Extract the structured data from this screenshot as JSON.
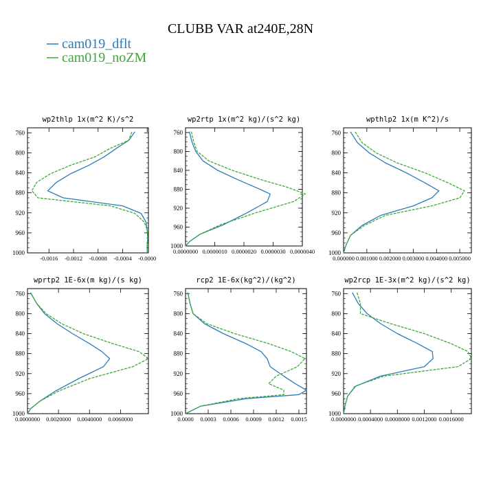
{
  "figure": {
    "title": "CLUBB VAR at240E,28N",
    "legend": [
      {
        "label": "cam019_dflt",
        "color": "#2b7bb9",
        "dash": "solid"
      },
      {
        "label": "cam019_noZM",
        "color": "#3aaa35",
        "dash": "dashed"
      }
    ]
  },
  "chart_data": [
    {
      "type": "line",
      "title": "wp2thlp  1x(m^2 K)/s^2",
      "ylim": [
        1000,
        750
      ],
      "yticks": [
        760,
        800,
        840,
        880,
        920,
        960,
        1000
      ],
      "xlim": [
        -0.00195,
        2e-05
      ],
      "xticks": [
        -0.0016,
        -0.0012,
        -0.0008,
        -0.0004,
        -0.0
      ],
      "xtick_labels": [
        "-0.0016",
        "-0.0012",
        "-0.0008",
        "-0.0004",
        "-0.0000"
      ],
      "levels": [
        758,
        775,
        791,
        808,
        825,
        842,
        859,
        876,
        890,
        906,
        921,
        938,
        954,
        970,
        985,
        1000
      ],
      "series": [
        {
          "name": "cam019_dflt",
          "color": "#2b7bb9",
          "dash": "solid",
          "values": [
            -0.0002,
            -0.0003,
            -0.0005,
            -0.0007,
            -0.00095,
            -0.00125,
            -0.00148,
            -0.00162,
            -0.00137,
            -0.0004,
            -0.0001,
            -2e-05,
            0.0,
            1e-05,
            0.0,
            0.0
          ]
        },
        {
          "name": "cam019_noZM",
          "color": "#3aaa35",
          "dash": "dashed",
          "values": [
            -0.00025,
            -0.0003,
            -0.0006,
            -0.00085,
            -0.00125,
            -0.00158,
            -0.0018,
            -0.00188,
            -0.00178,
            -0.0006,
            -0.0002,
            -5e-05,
            0.0,
            1e-05,
            0.0,
            0.0
          ]
        }
      ]
    },
    {
      "type": "line",
      "title": "wp2rtp  1x(m^2 kg)/(s^2 kg)",
      "ylim": [
        1000,
        750
      ],
      "yticks": [
        760,
        800,
        840,
        880,
        920,
        960,
        1000
      ],
      "xlim": [
        0,
        4e-06
      ],
      "xticks": [
        0,
        1e-06,
        2e-06,
        3e-06,
        4e-06
      ],
      "xtick_labels": [
        "0.0000000",
        "0.0000010",
        "0.0000020",
        "0.0000030",
        "0.0000040"
      ],
      "levels": [
        758,
        780,
        800,
        820,
        840,
        860,
        876,
        890,
        906,
        930,
        955,
        975,
        990,
        1000
      ],
      "series": [
        {
          "name": "cam019_dflt",
          "color": "#2b7bb9",
          "dash": "solid",
          "values": [
            1.3e-07,
            2.2e-07,
            3.5e-07,
            6e-07,
            1.1e-06,
            1.8e-06,
            2.4e-06,
            2.9e-06,
            2.8e-06,
            2.1e-06,
            1.3e-06,
            5e-07,
            1.5e-07,
            0.0
          ]
        },
        {
          "name": "cam019_noZM",
          "color": "#3aaa35",
          "dash": "dashed",
          "values": [
            2e-07,
            2.8e-07,
            4e-07,
            8e-07,
            1.6e-06,
            2.6e-06,
            3.5e-06,
            4.1e-06,
            3.7e-06,
            2.4e-06,
            1.2e-06,
            5e-07,
            1.5e-07,
            0.0
          ]
        }
      ]
    },
    {
      "type": "line",
      "title": "wpthlp2  1x(m K^2)/s",
      "ylim": [
        1000,
        750
      ],
      "yticks": [
        760,
        800,
        840,
        880,
        920,
        960,
        1000
      ],
      "xlim": [
        0,
        0.0055
      ],
      "xticks": [
        0,
        0.001,
        0.002,
        0.003,
        0.004,
        0.005
      ],
      "xtick_labels": [
        "0.000000",
        "0.001000",
        "0.002000",
        "0.003000",
        "0.004000",
        "0.005000"
      ],
      "levels": [
        758,
        780,
        800,
        820,
        840,
        860,
        876,
        890,
        906,
        925,
        945,
        965,
        985,
        1000
      ],
      "series": [
        {
          "name": "cam019_dflt",
          "color": "#2b7bb9",
          "dash": "solid",
          "values": [
            0.0003,
            0.0006,
            0.0011,
            0.0018,
            0.0027,
            0.0035,
            0.0041,
            0.0038,
            0.003,
            0.0016,
            0.0008,
            0.0003,
            0.0001,
            0.0
          ]
        },
        {
          "name": "cam019_noZM",
          "color": "#3aaa35",
          "dash": "dashed",
          "values": [
            0.0005,
            0.0008,
            0.0014,
            0.0023,
            0.0035,
            0.0045,
            0.0052,
            0.005,
            0.0038,
            0.0018,
            0.0009,
            0.0003,
            0.0001,
            0.0
          ]
        }
      ]
    },
    {
      "type": "line",
      "title": "wprtp2  1E-6x(m kg)/(s kg)",
      "ylim": [
        1000,
        750
      ],
      "yticks": [
        760,
        800,
        840,
        880,
        920,
        960,
        1000
      ],
      "xlim": [
        0,
        0.0078
      ],
      "xticks": [
        0,
        0.002,
        0.004,
        0.006
      ],
      "xtick_labels": [
        "0.0000000",
        "0.0020000",
        "0.0040000",
        "0.0060000"
      ],
      "levels": [
        758,
        780,
        800,
        820,
        840,
        860,
        876,
        890,
        906,
        930,
        955,
        975,
        990,
        1000
      ],
      "series": [
        {
          "name": "cam019_dflt",
          "color": "#2b7bb9",
          "dash": "solid",
          "values": [
            0.0002,
            0.0006,
            0.0011,
            0.0019,
            0.0029,
            0.004,
            0.0048,
            0.0053,
            0.0049,
            0.0033,
            0.0018,
            0.0008,
            0.0002,
            0.0
          ]
        },
        {
          "name": "cam019_noZM",
          "color": "#3aaa35",
          "dash": "dashed",
          "values": [
            0.0002,
            0.0006,
            0.0012,
            0.0022,
            0.0036,
            0.0055,
            0.0072,
            0.0078,
            0.0068,
            0.004,
            0.002,
            0.0008,
            0.0002,
            0.0
          ]
        }
      ]
    },
    {
      "type": "line",
      "title": "rcp2  1E-6x(kg^2)/(kg^2)",
      "ylim": [
        1000,
        750
      ],
      "yticks": [
        760,
        800,
        840,
        880,
        920,
        960,
        1000
      ],
      "xlim": [
        0,
        0.0016
      ],
      "xticks": [
        0,
        0.0003,
        0.0006,
        0.0009,
        0.0012,
        0.0015
      ],
      "xtick_labels": [
        "0.0000",
        "0.0003",
        "0.0006",
        "0.0009",
        "0.0012",
        "0.0015"
      ],
      "levels": [
        758,
        780,
        800,
        820,
        840,
        860,
        876,
        890,
        906,
        925,
        940,
        953,
        962,
        970,
        985,
        1000
      ],
      "series": [
        {
          "name": "cam019_dflt",
          "color": "#2b7bb9",
          "dash": "solid",
          "values": [
            3e-05,
            6e-05,
            0.0001,
            0.00025,
            0.0005,
            0.0008,
            0.001,
            0.00108,
            0.00112,
            0.0013,
            0.00145,
            0.0016,
            0.0015,
            0.0008,
            0.0002,
            0.0
          ]
        },
        {
          "name": "cam019_noZM",
          "color": "#3aaa35",
          "dash": "dashed",
          "values": [
            3e-05,
            6e-05,
            0.0001,
            0.00028,
            0.00065,
            0.0011,
            0.0014,
            0.00158,
            0.00148,
            0.0012,
            0.0011,
            0.0013,
            0.0013,
            0.0007,
            0.0002,
            0.0
          ]
        }
      ]
    },
    {
      "type": "line",
      "title": "wp2rcp  1E-3x(m^2 kg)/(s^2 kg)",
      "ylim": [
        1000,
        750
      ],
      "yticks": [
        760,
        800,
        840,
        880,
        920,
        960,
        1000
      ],
      "xlim": [
        0,
        0.0019
      ],
      "xticks": [
        0,
        0.0004,
        0.0008,
        0.0012,
        0.0016
      ],
      "xtick_labels": [
        "0.0000000",
        "0.0004000",
        "0.0008000",
        "0.0012000",
        "0.0016000"
      ],
      "levels": [
        758,
        780,
        800,
        820,
        840,
        860,
        876,
        890,
        906,
        925,
        945,
        965,
        985,
        1000
      ],
      "series": [
        {
          "name": "cam019_dflt",
          "color": "#2b7bb9",
          "dash": "solid",
          "values": [
            0.00013,
            0.00022,
            0.00035,
            0.00055,
            0.0008,
            0.0011,
            0.00132,
            0.00133,
            0.0012,
            0.00055,
            0.00018,
            6e-05,
            2e-05,
            0.0
          ]
        },
        {
          "name": "cam019_noZM",
          "color": "#3aaa35",
          "dash": "dashed",
          "values": [
            0.0002,
            0.00025,
            0.00025,
            0.0007,
            0.0012,
            0.0016,
            0.00185,
            0.0019,
            0.0017,
            0.0006,
            0.00017,
            6e-05,
            2e-05,
            0.0
          ]
        }
      ]
    }
  ]
}
